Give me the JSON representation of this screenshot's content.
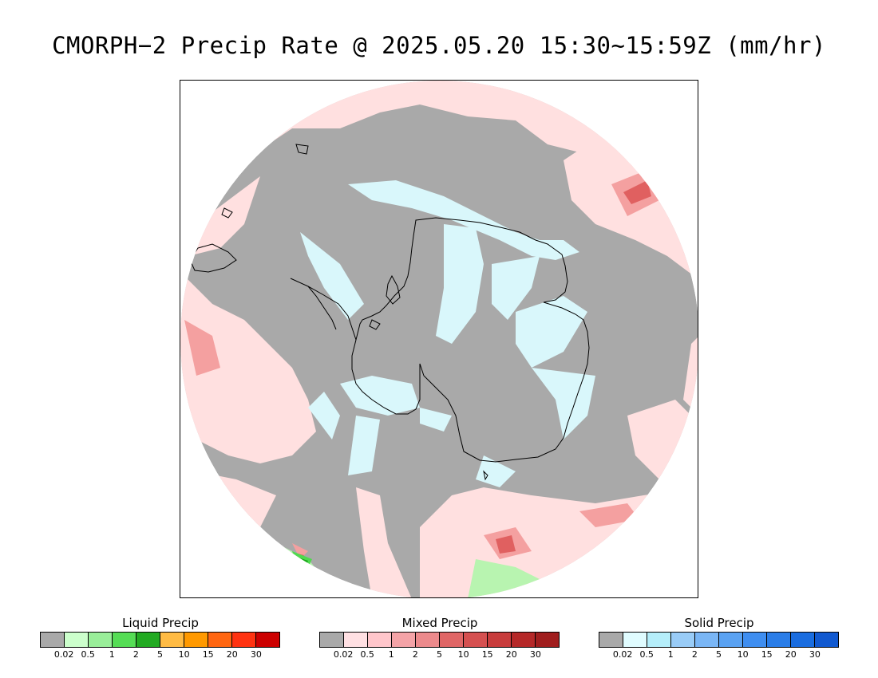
{
  "title": "CMORPH−2 Precip Rate @ 2025.05.20 15:30~15:59Z (mm/hr)",
  "map": {
    "projection": "south-polar-stereographic",
    "colors": {
      "no_precip": "#a9a9a9",
      "outside": "#ffffff",
      "mixed_light": "#ffe0e0",
      "mixed_mid": "#f4a0a0",
      "mixed_heavy": "#e06060",
      "solid_light": "#d9f7fb",
      "liquid_light": "#b8f4b0",
      "liquid_mid": "#4fd94f",
      "liquid_heavy": "#1aa61a",
      "coastline": "#000000"
    }
  },
  "legends": [
    {
      "id": "liquid",
      "title": "Liquid Precip",
      "colors": [
        "#a9a9a9",
        "#ccffcc",
        "#99ee99",
        "#55dd55",
        "#22aa22",
        "#ffbb44",
        "#ff9900",
        "#ff6611",
        "#ff3311",
        "#cc0000"
      ],
      "ticks": [
        "0.02",
        "0.5",
        "1",
        "2",
        "5",
        "10",
        "15",
        "20",
        "30"
      ]
    },
    {
      "id": "mixed",
      "title": "Mixed Precip",
      "colors": [
        "#a9a9a9",
        "#ffe0e3",
        "#ffc6cb",
        "#f4a3a7",
        "#ec8a8c",
        "#e06666",
        "#d55050",
        "#c83c3c",
        "#b52828",
        "#a01d1d"
      ],
      "ticks": [
        "0.02",
        "0.5",
        "1",
        "2",
        "5",
        "10",
        "15",
        "20",
        "30"
      ]
    },
    {
      "id": "solid",
      "title": "Solid Precip",
      "colors": [
        "#a9a9a9",
        "#e0fcff",
        "#b5eefa",
        "#99ccf7",
        "#7ab6f5",
        "#5aa2f2",
        "#3f8ef0",
        "#2a7de8",
        "#1a6de0",
        "#1159d0"
      ],
      "ticks": [
        "0.02",
        "0.5",
        "1",
        "2",
        "5",
        "10",
        "15",
        "20",
        "30"
      ]
    }
  ]
}
